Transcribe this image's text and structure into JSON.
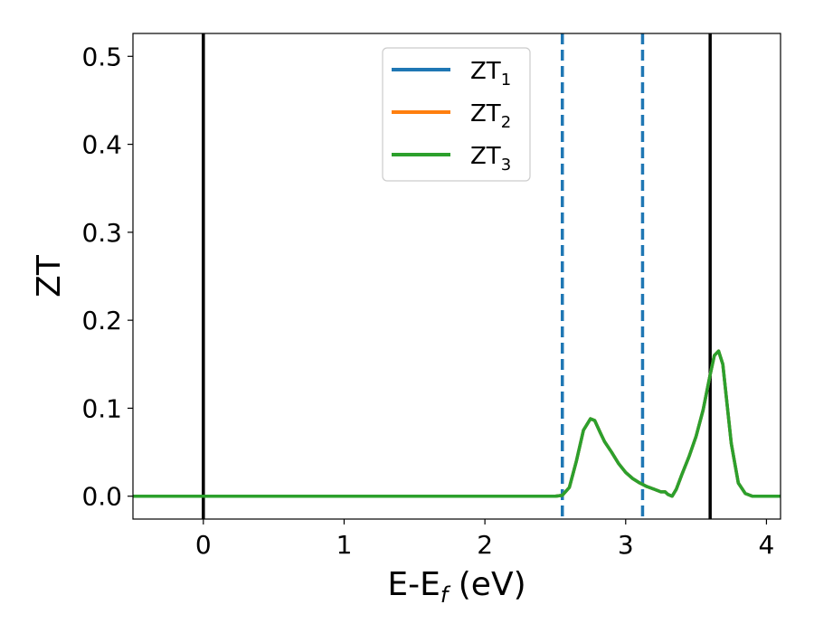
{
  "chart_data": {
    "type": "line",
    "xlabel": {
      "main": "E-E",
      "sub": "f",
      "suffix": " (eV)"
    },
    "ylabel": "ZT",
    "xlim": [
      -0.5,
      4.1
    ],
    "ylim": [
      -0.026,
      0.526
    ],
    "xticks": [
      0,
      1,
      2,
      3,
      4
    ],
    "yticks": [
      0.0,
      0.1,
      0.2,
      0.3,
      0.4,
      0.5
    ],
    "xtick_labels": [
      "0",
      "1",
      "2",
      "3",
      "4"
    ],
    "ytick_labels": [
      "0.0",
      "0.1",
      "0.2",
      "0.3",
      "0.4",
      "0.5"
    ],
    "grid": false,
    "legend_position": "top-center",
    "vlines": [
      {
        "x": 0.0,
        "style": "solid",
        "color": "#000000"
      },
      {
        "x": 2.55,
        "style": "dashed",
        "color": "#1f77b4"
      },
      {
        "x": 3.12,
        "style": "dashed",
        "color": "#1f77b4"
      },
      {
        "x": 3.6,
        "style": "solid",
        "color": "#000000"
      }
    ],
    "series": [
      {
        "name": "ZT",
        "sub": "1",
        "color": "#1f77b4",
        "x": [
          -0.5,
          2.5,
          2.55,
          2.6,
          2.65,
          2.7,
          2.75,
          2.78,
          2.82,
          2.85,
          2.9,
          2.95,
          3.0,
          3.05,
          3.1,
          3.15,
          3.2,
          3.25,
          3.28,
          3.3,
          3.33,
          3.36,
          3.4,
          3.45,
          3.5,
          3.55,
          3.6,
          3.63,
          3.66,
          3.69,
          3.72,
          3.75,
          3.8,
          3.85,
          3.9,
          4.1
        ],
        "y": [
          0.0,
          0.0,
          0.001,
          0.01,
          0.04,
          0.075,
          0.088,
          0.086,
          0.072,
          0.062,
          0.05,
          0.037,
          0.027,
          0.02,
          0.015,
          0.011,
          0.008,
          0.005,
          0.005,
          0.002,
          0.0,
          0.008,
          0.025,
          0.045,
          0.068,
          0.098,
          0.138,
          0.16,
          0.165,
          0.15,
          0.105,
          0.06,
          0.015,
          0.003,
          0.0,
          0.0
        ]
      },
      {
        "name": "ZT",
        "sub": "2",
        "color": "#ff7f0e",
        "x": [
          -0.5,
          2.5,
          2.55,
          2.6,
          2.65,
          2.7,
          2.75,
          2.78,
          2.82,
          2.85,
          2.9,
          2.95,
          3.0,
          3.05,
          3.1,
          3.15,
          3.2,
          3.25,
          3.28,
          3.3,
          3.33,
          3.36,
          3.4,
          3.45,
          3.5,
          3.55,
          3.6,
          3.63,
          3.66,
          3.69,
          3.72,
          3.75,
          3.8,
          3.85,
          3.9,
          4.1
        ],
        "y": [
          0.0,
          0.0,
          0.001,
          0.01,
          0.04,
          0.075,
          0.088,
          0.086,
          0.072,
          0.062,
          0.05,
          0.037,
          0.027,
          0.02,
          0.015,
          0.011,
          0.008,
          0.005,
          0.005,
          0.002,
          0.0,
          0.008,
          0.025,
          0.045,
          0.068,
          0.098,
          0.138,
          0.16,
          0.165,
          0.15,
          0.105,
          0.06,
          0.015,
          0.003,
          0.0,
          0.0
        ]
      },
      {
        "name": "ZT",
        "sub": "3",
        "color": "#2ca02c",
        "x": [
          -0.5,
          2.5,
          2.55,
          2.6,
          2.65,
          2.7,
          2.75,
          2.78,
          2.82,
          2.85,
          2.9,
          2.95,
          3.0,
          3.05,
          3.1,
          3.15,
          3.2,
          3.25,
          3.28,
          3.3,
          3.33,
          3.36,
          3.4,
          3.45,
          3.5,
          3.55,
          3.6,
          3.63,
          3.66,
          3.69,
          3.72,
          3.75,
          3.8,
          3.85,
          3.9,
          4.1
        ],
        "y": [
          0.0,
          0.0,
          0.001,
          0.01,
          0.04,
          0.075,
          0.088,
          0.086,
          0.072,
          0.062,
          0.05,
          0.037,
          0.027,
          0.02,
          0.015,
          0.011,
          0.008,
          0.005,
          0.005,
          0.002,
          0.0,
          0.008,
          0.025,
          0.045,
          0.068,
          0.098,
          0.138,
          0.16,
          0.165,
          0.15,
          0.105,
          0.06,
          0.015,
          0.003,
          0.0,
          0.0
        ]
      }
    ]
  }
}
